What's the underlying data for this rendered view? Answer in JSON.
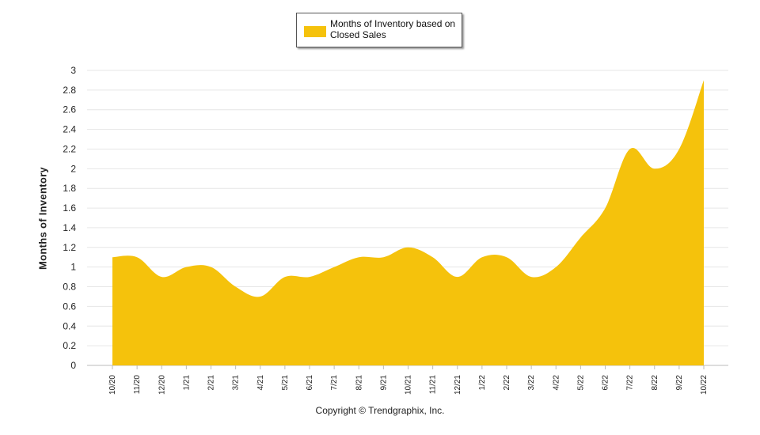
{
  "chart_data": {
    "type": "area",
    "title": "",
    "legend": {
      "label": "Months of Inventory based on Closed Sales",
      "placement": "top-center"
    },
    "xlabel": "",
    "ylabel": "Months of Inventory",
    "ylim": [
      0,
      3
    ],
    "yticks": [
      "0",
      "0.2",
      "0.4",
      "0.6",
      "0.8",
      "1",
      "1.2",
      "1.4",
      "1.6",
      "1.8",
      "2",
      "2.2",
      "2.4",
      "2.6",
      "2.8",
      "3"
    ],
    "categories": [
      "10/20",
      "11/20",
      "12/20",
      "1/21",
      "2/21",
      "3/21",
      "4/21",
      "5/21",
      "6/21",
      "7/21",
      "8/21",
      "9/21",
      "10/21",
      "11/21",
      "12/21",
      "1/22",
      "2/22",
      "3/22",
      "4/22",
      "5/22",
      "6/22",
      "7/22",
      "8/22",
      "9/22",
      "10/22"
    ],
    "series": [
      {
        "name": "Months of Inventory based on Closed Sales",
        "values": [
          1.1,
          1.1,
          0.9,
          1.0,
          1.0,
          0.8,
          0.7,
          0.9,
          0.9,
          1.0,
          1.1,
          1.1,
          1.2,
          1.1,
          0.9,
          1.1,
          1.1,
          0.9,
          1.0,
          1.3,
          1.6,
          2.2,
          2.0,
          2.2,
          2.9
        ]
      }
    ],
    "grid": true
  },
  "colors": {
    "area": "#f5c20c",
    "grid": "#e6e6e6",
    "axis": "#bbbbbb"
  },
  "footer": {
    "copyright": "Copyright © Trendgraphix, Inc."
  }
}
